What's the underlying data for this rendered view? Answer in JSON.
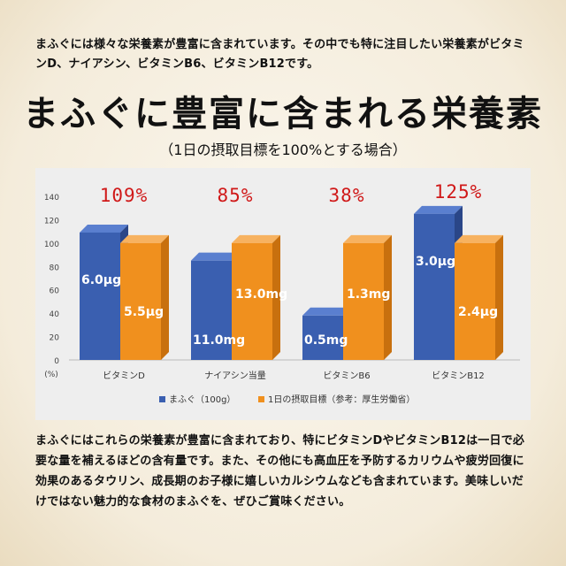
{
  "intro_text": "まふぐには様々な栄養素が豊富に含まれています。その中でも特に注目したい栄養素がビタミンD、ナイアシン、ビタミンB6、ビタミンB12です。",
  "title": "まふぐに豊富に含まれる栄養素",
  "subtitle": "（1日の摂取目標を100%とする場合）",
  "outro_text": "まふぐにはこれらの栄養素が豊富に含まれており、特にビタミンDやビタミンB12は一日で必要な量を補えるほどの含有量です。また、その他にも高血圧を予防するカリウムや疲労回復に効果のあるタウリン、成長期のお子様に嬉しいカルシウムなども含まれています。美味しいだけではない魅力的な食材のまふぐを、ぜひご賞味ください。",
  "colors": {
    "blue": "#3a5fb0",
    "orange": "#f0901e",
    "percent": "#d01818",
    "chart_bg": "#eeeeee"
  },
  "chart_data": {
    "type": "bar",
    "unit_label": "(%)",
    "ylim": [
      0,
      140
    ],
    "yticks": [
      0,
      20,
      40,
      60,
      80,
      100,
      120,
      140
    ],
    "grid": false,
    "legend_position": "bottom",
    "categories": [
      "ビタミンD",
      "ナイアシン当量",
      "ビタミンB6",
      "ビタミンB12"
    ],
    "percent_labels": [
      "109%",
      "85%",
      "38%",
      "125%"
    ],
    "series": [
      {
        "name": "まふぐ（100g）",
        "values": [
          109,
          85,
          38,
          125
        ],
        "labels": [
          "6.0μg",
          "11.0mg",
          "0.5mg",
          "3.0μg"
        ]
      },
      {
        "name": "1日の摂取目標（参考：厚生労働省）",
        "values": [
          100,
          100,
          100,
          100
        ],
        "labels": [
          "5.5μg",
          "13.0mg",
          "1.3mg",
          "2.4μg"
        ]
      }
    ]
  }
}
